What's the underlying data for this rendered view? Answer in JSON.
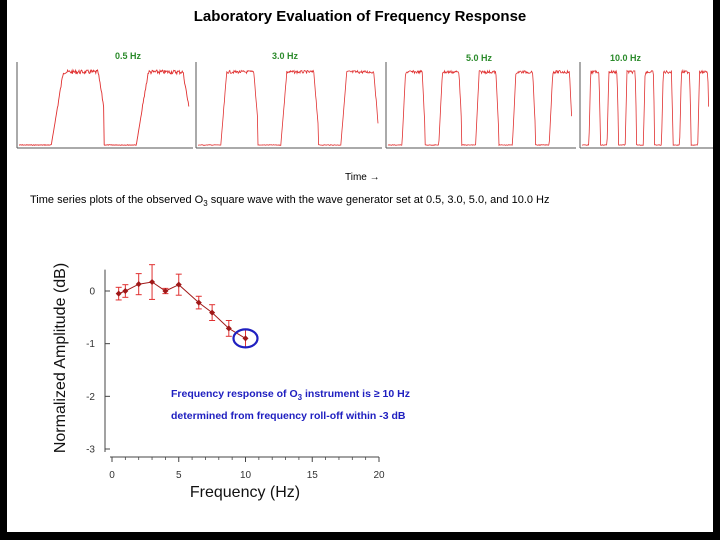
{
  "title": "Laboratory Evaluation of  Frequency Response",
  "time_axis_label": "Time →",
  "caption": {
    "before": "Time series plots of the observed O",
    "sub": "3",
    "after": " square wave with the wave generator set at 0.5, 3.0, 5.0, and 10.0 Hz"
  },
  "note": {
    "line1_before": "Frequency response of O",
    "line1_sub": "3",
    "line1_after": " instrument is ≥ 10 Hz",
    "line2": "determined from frequency roll-off within -3 dB"
  },
  "colors": {
    "trace": "#e03030",
    "accent_green": "#2a8a2a",
    "marker": "#a01818",
    "note": "#2020c0",
    "circle": "#2020c0"
  },
  "chart_data": [
    {
      "type": "line",
      "panels": [
        {
          "label": "0.5 Hz",
          "frequency_hz": 0.5,
          "cycles": 2
        },
        {
          "label": "3.0 Hz",
          "frequency_hz": 3.0,
          "cycles": 3
        },
        {
          "label": "5.0 Hz",
          "frequency_hz": 5.0,
          "cycles": 5
        },
        {
          "label": "10.0 Hz",
          "frequency_hz": 10.0,
          "cycles": 7
        }
      ],
      "xlabel": "Time →"
    },
    {
      "type": "scatter",
      "xlabel": "Frequency (Hz)",
      "ylabel": "Normalized Amplitude (dB)",
      "xlim": [
        0,
        20
      ],
      "ylim": [
        -3,
        0.5
      ],
      "xticks": [
        0,
        5,
        10,
        15,
        20
      ],
      "yticks": [
        0,
        -1,
        -2,
        -3
      ],
      "points": [
        {
          "x": 0.5,
          "y": -0.05,
          "err": 0.12
        },
        {
          "x": 1.0,
          "y": 0.0,
          "err": 0.12
        },
        {
          "x": 2.0,
          "y": 0.13,
          "err": 0.2
        },
        {
          "x": 3.0,
          "y": 0.17,
          "err": 0.33
        },
        {
          "x": 4.0,
          "y": 0.0,
          "err": 0.05
        },
        {
          "x": 5.0,
          "y": 0.12,
          "err": 0.2
        },
        {
          "x": 6.5,
          "y": -0.22,
          "err": 0.12
        },
        {
          "x": 7.5,
          "y": -0.41,
          "err": 0.15
        },
        {
          "x": 8.75,
          "y": -0.71,
          "err": 0.15
        },
        {
          "x": 10.0,
          "y": -0.9,
          "err": 0.17
        }
      ],
      "highlighted_point_x": 10.0
    }
  ]
}
